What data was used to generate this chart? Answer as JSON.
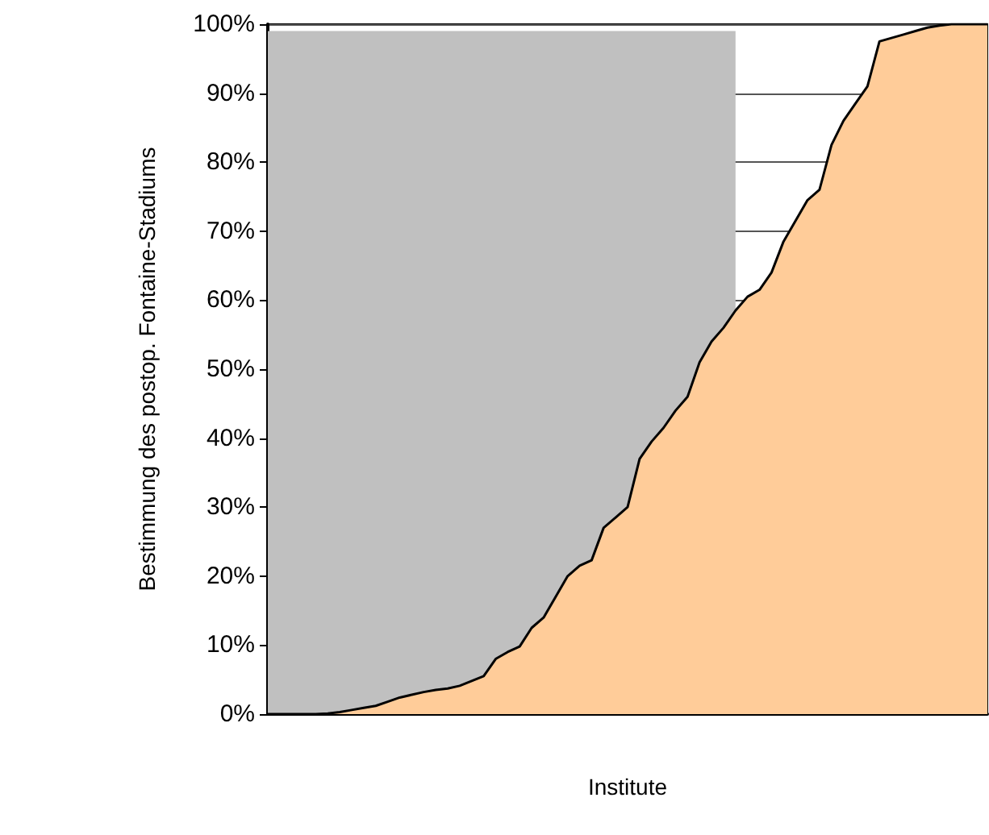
{
  "chart_data": {
    "type": "area",
    "xlabel": "Institute",
    "ylabel": "Bestimmung des postop. Fontaine-Stadiums",
    "categories": [
      null,
      null,
      null,
      null,
      null,
      null,
      null,
      null,
      null,
      null,
      null,
      null,
      null,
      null,
      null,
      null,
      null,
      null,
      null,
      null,
      null,
      null,
      null,
      null,
      null,
      null,
      null,
      null,
      null,
      null,
      null,
      null,
      null,
      null,
      null,
      null,
      null,
      null,
      null,
      null,
      null,
      null,
      null,
      null,
      null,
      null,
      null,
      null,
      null,
      null,
      null,
      null,
      null,
      null,
      null,
      null,
      null,
      null,
      null,
      null,
      null
    ],
    "series": [
      {
        "color": "#c0c0c0",
        "values": [
          99,
          99,
          99,
          99,
          99,
          99,
          99,
          99,
          99,
          99,
          99,
          99,
          99,
          99,
          99,
          99,
          99,
          99,
          99,
          99,
          99,
          99,
          99,
          99,
          99,
          99,
          99,
          99,
          99,
          99,
          99,
          99,
          99,
          99,
          99,
          99,
          99,
          99,
          99,
          99,
          null,
          null,
          null,
          null,
          null,
          null,
          null,
          null,
          null,
          null,
          null,
          null,
          null,
          null,
          null,
          null,
          null,
          null,
          null,
          null,
          null
        ]
      },
      {
        "color": "#ffcc99",
        "values": [
          0,
          0,
          0,
          0,
          0,
          0.1,
          0.3,
          0.6,
          0.9,
          1.2,
          1.8,
          2.4,
          2.8,
          3.2,
          3.5,
          3.7,
          4.1,
          4.8,
          5.5,
          8,
          9,
          9.8,
          12.5,
          14,
          17,
          20,
          21.5,
          22.3,
          27,
          28.5,
          30,
          37,
          39.5,
          41.5,
          44,
          46,
          51,
          54,
          56,
          58.5,
          60.5,
          61.5,
          64,
          68.5,
          71.5,
          74.5,
          76,
          82.5,
          86,
          88.5,
          91,
          97.5,
          98,
          98.5,
          99,
          99.5,
          99.8,
          100,
          100,
          100,
          100
        ]
      }
    ],
    "ylim": [
      0,
      100
    ],
    "yticks": [
      {
        "value": 0,
        "label": "0%"
      },
      {
        "value": 10,
        "label": "10%"
      },
      {
        "value": 20,
        "label": "20%"
      },
      {
        "value": 30,
        "label": "30%"
      },
      {
        "value": 40,
        "label": "40%"
      },
      {
        "value": 50,
        "label": "50%"
      },
      {
        "value": 60,
        "label": "60%"
      },
      {
        "value": 70,
        "label": "70%"
      },
      {
        "value": 80,
        "label": "80%"
      },
      {
        "value": 90,
        "label": "90%"
      },
      {
        "value": 100,
        "label": "100%"
      }
    ],
    "grid": "y",
    "tick_labels": "y"
  }
}
